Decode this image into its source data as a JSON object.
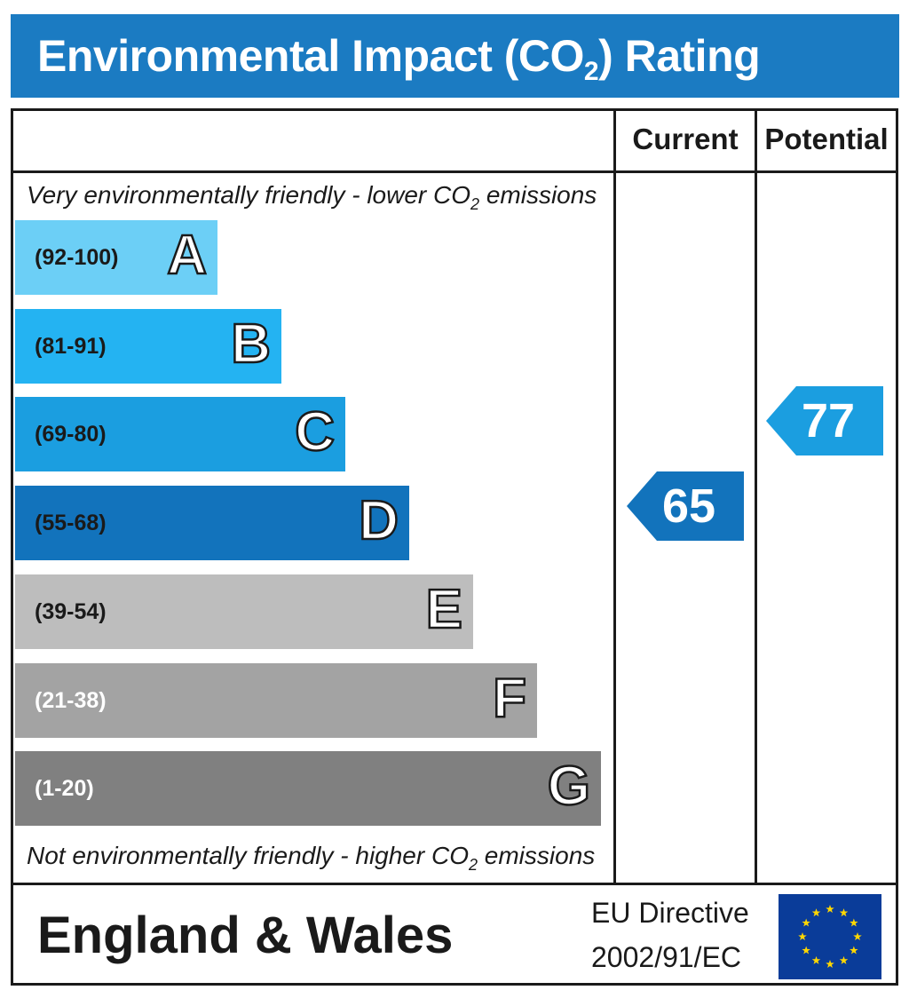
{
  "title": {
    "main": "Environmental Impact (CO",
    "sub": "2",
    "end": ") Rating"
  },
  "columns": {
    "current": "Current",
    "potential": "Potential"
  },
  "top_caption": {
    "pre": "Very environmentally friendly - lower CO",
    "sub": "2",
    "post": " emissions"
  },
  "bottom_caption": {
    "pre": "Not environmentally friendly - higher CO",
    "sub": "2",
    "post": " emissions"
  },
  "chart_data": {
    "type": "bar",
    "bands": [
      {
        "letter": "A",
        "range": "(92-100)",
        "min": 92,
        "max": 100,
        "color": "#6ccff6",
        "text_color": "#1a1a1a"
      },
      {
        "letter": "B",
        "range": "(81-91)",
        "min": 81,
        "max": 91,
        "color": "#24b3f2",
        "text_color": "#1a1a1a"
      },
      {
        "letter": "C",
        "range": "(69-80)",
        "min": 69,
        "max": 80,
        "color": "#1b9ee0",
        "text_color": "#1a1a1a"
      },
      {
        "letter": "D",
        "range": "(55-68)",
        "min": 55,
        "max": 68,
        "color": "#1273bc",
        "text_color": "#1a1a1a"
      },
      {
        "letter": "E",
        "range": "(39-54)",
        "min": 39,
        "max": 54,
        "color": "#bdbdbd",
        "text_color": "#1a1a1a"
      },
      {
        "letter": "F",
        "range": "(21-38)",
        "min": 21,
        "max": 38,
        "color": "#a3a3a3",
        "text_color": "#ffffff"
      },
      {
        "letter": "G",
        "range": "(1-20)",
        "min": 1,
        "max": 20,
        "color": "#808080",
        "text_color": "#ffffff"
      }
    ],
    "current": {
      "value": 65,
      "band": "D",
      "color": "#1273bc"
    },
    "potential": {
      "value": 77,
      "band": "C",
      "color": "#1b9ee0"
    }
  },
  "footer": {
    "country": "England & Wales",
    "directive_line1": "EU Directive",
    "directive_line2": "2002/91/EC",
    "flag_color": "#0a3c99",
    "star_color": "#ffd700"
  }
}
